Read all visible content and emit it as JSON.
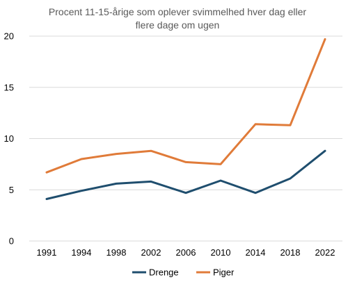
{
  "chart_data": {
    "type": "line",
    "title_lines": [
      "Procent 11-15-årige som oplever svimmelhed hver dag eller",
      "flere dage om ugen"
    ],
    "categories": [
      "1991",
      "1994",
      "1998",
      "2002",
      "2006",
      "2010",
      "2014",
      "2018",
      "2022"
    ],
    "series": [
      {
        "name": "Drenge",
        "color": "#1f4e6e",
        "values": [
          4.1,
          4.9,
          5.6,
          5.8,
          4.7,
          5.9,
          4.7,
          6.1,
          8.8
        ]
      },
      {
        "name": "Piger",
        "color": "#e07b39",
        "values": [
          6.7,
          8.0,
          8.5,
          8.8,
          7.7,
          7.5,
          11.4,
          11.3,
          19.7
        ]
      }
    ],
    "ylim": [
      0,
      20
    ],
    "yticks": [
      0,
      5,
      10,
      15,
      20
    ],
    "ytick_labels": [
      "0",
      "5",
      "10",
      "15",
      "20"
    ],
    "grid": "horizontal",
    "legend_position": "bottom"
  }
}
